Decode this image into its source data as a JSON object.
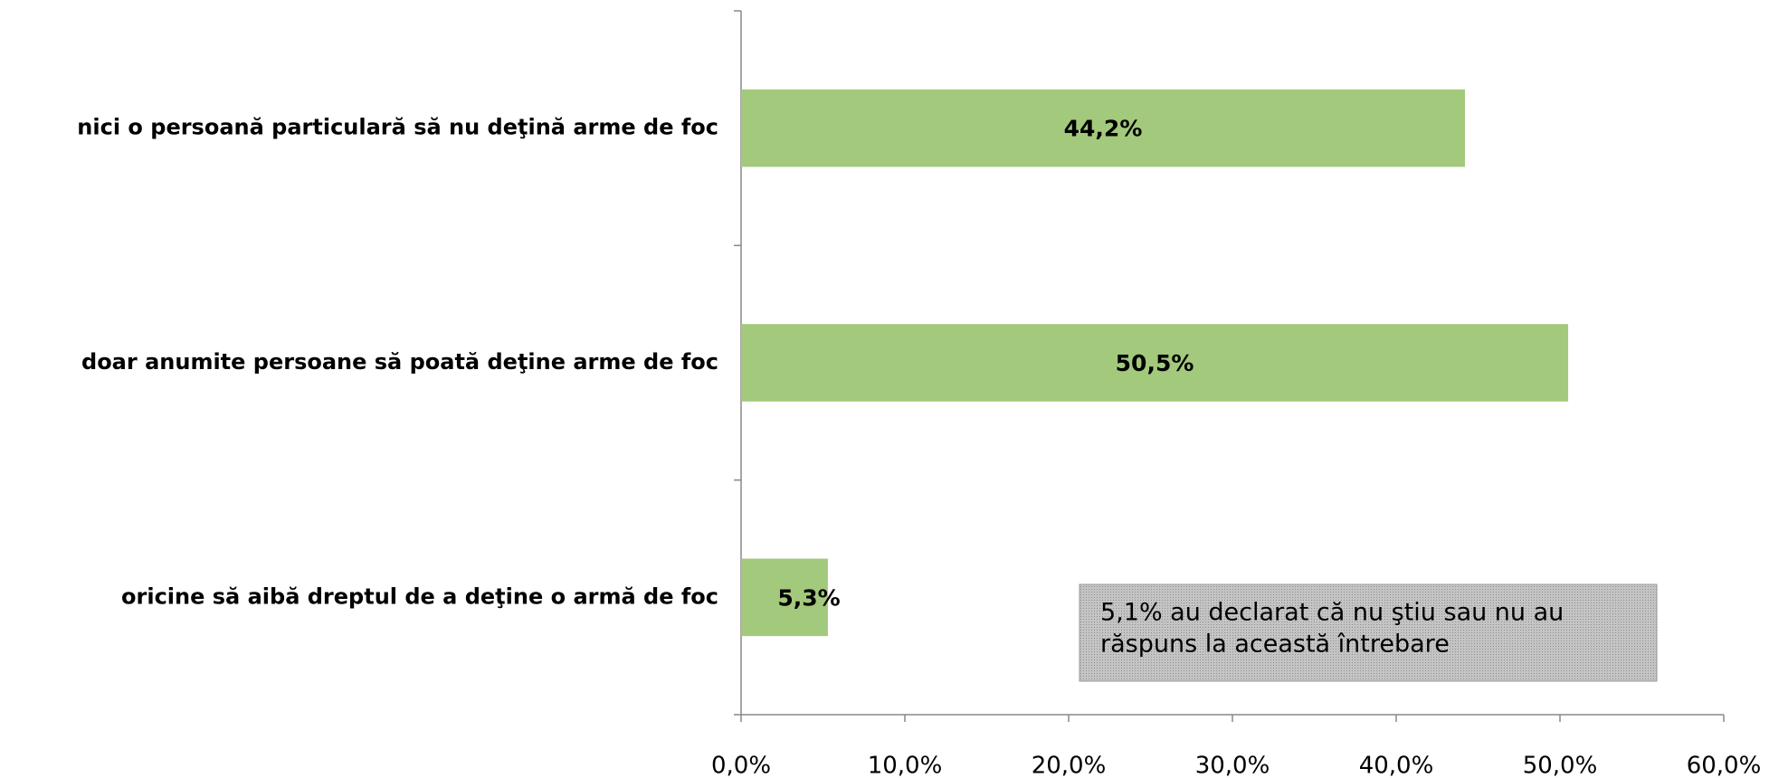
{
  "chart_data": {
    "type": "barh",
    "categories": [
      "nici o persoană particulară să nu deţină arme de foc",
      "doar anumite persoane să poată deţine arme de foc",
      "oricine să aibă dreptul de a deţine o armă de foc"
    ],
    "values": [
      44.2,
      50.5,
      5.3
    ],
    "value_labels": [
      "44,2%",
      "50,5%",
      "5,3%"
    ],
    "color": "#a3c97c",
    "xlim": [
      0,
      60
    ],
    "xticks": [
      {
        "value": 0,
        "label": "0,0%"
      },
      {
        "value": 10,
        "label": "10,0%"
      },
      {
        "value": 20,
        "label": "20,0%"
      },
      {
        "value": 30,
        "label": "30,0%"
      },
      {
        "value": 40,
        "label": "40,0%"
      },
      {
        "value": 50,
        "label": "50,0%"
      },
      {
        "value": 60,
        "label": "60,0%"
      }
    ],
    "annotation": [
      "5,1% au declarat că nu ştiu sau nu au",
      "răspuns la această întrebare"
    ]
  }
}
